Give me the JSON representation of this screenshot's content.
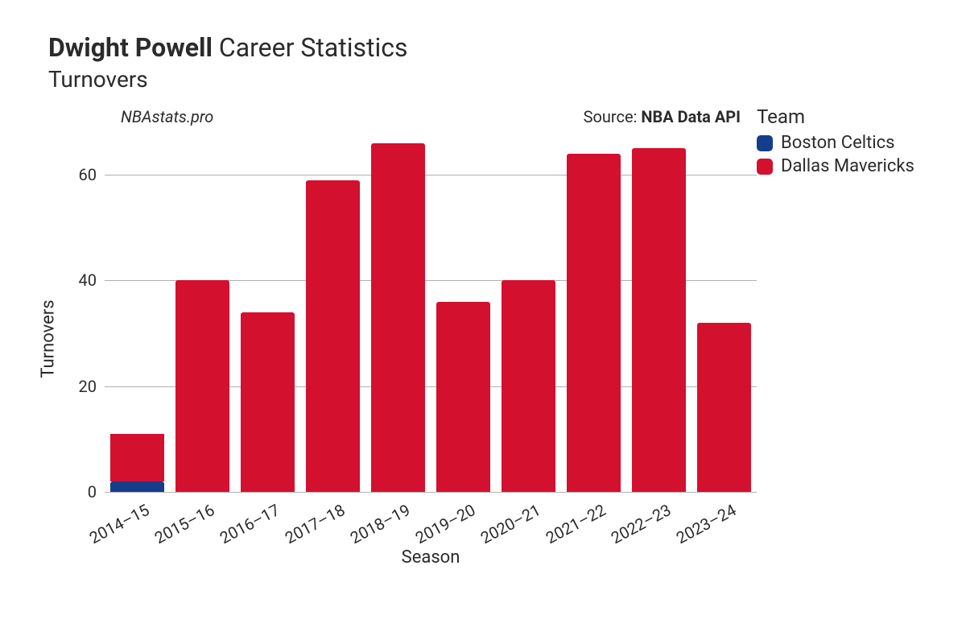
{
  "title": {
    "player": "Dwight Powell",
    "suffix": "Career Statistics",
    "subtitle": "Turnovers",
    "fontsize": 32,
    "subtitle_fontsize": 28,
    "color": "#2b2b2b"
  },
  "meta": {
    "site": "NBAstats.pro",
    "source_label": "Source: ",
    "source_name": "NBA Data API",
    "fontsize": 20
  },
  "legend": {
    "title": "Team",
    "title_fontsize": 24,
    "item_fontsize": 22,
    "items": [
      {
        "label": "Boston Celtics",
        "color": "#163d8c"
      },
      {
        "label": "Dallas Mavericks",
        "color": "#d4102f"
      }
    ]
  },
  "chart": {
    "type": "stacked-bar",
    "xlabel": "Season",
    "ylabel": "Turnovers",
    "label_fontsize": 22,
    "tick_fontsize": 20,
    "background_color": "#ffffff",
    "grid_color": "#b0b0b0",
    "bar_width": 0.82,
    "bar_corner_radius": 3,
    "ylim": [
      0,
      67
    ],
    "yticks": [
      0,
      20,
      40,
      60
    ],
    "xtick_rotation": -28,
    "seasons": [
      "2014–15",
      "2015–16",
      "2016–17",
      "2017–18",
      "2018–19",
      "2019–20",
      "2020–21",
      "2021–22",
      "2022–23",
      "2023–24"
    ],
    "series": [
      {
        "team": "Boston Celtics",
        "color": "#163d8c",
        "values": [
          2,
          0,
          0,
          0,
          0,
          0,
          0,
          0,
          0,
          0
        ]
      },
      {
        "team": "Dallas Mavericks",
        "color": "#d4102f",
        "values": [
          9,
          40,
          34,
          59,
          66,
          36,
          40,
          64,
          65,
          32
        ]
      }
    ]
  }
}
